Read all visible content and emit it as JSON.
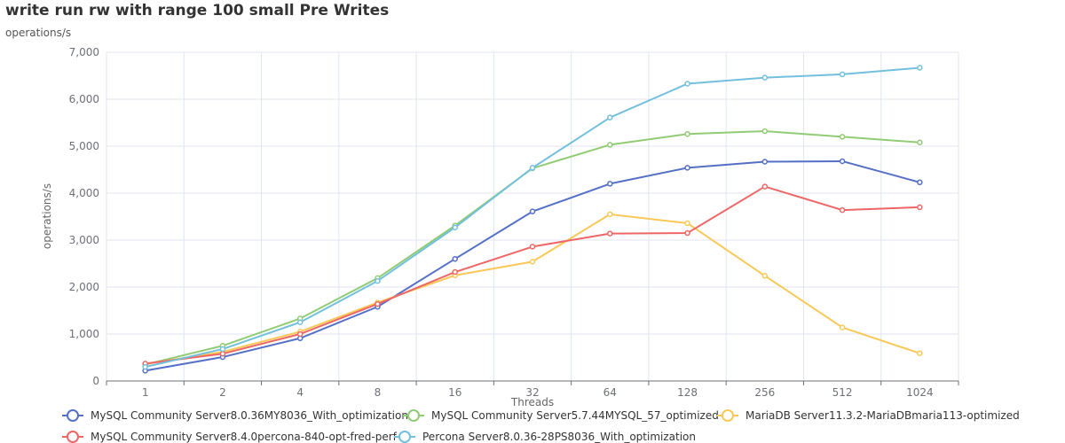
{
  "chart_data": {
    "type": "line",
    "title": "write run rw with range 100 small Pre Writes",
    "subtitle": "operations/s",
    "xlabel": "Threads",
    "ylabel": "operations/s",
    "categories": [
      "1",
      "2",
      "4",
      "8",
      "16",
      "32",
      "64",
      "128",
      "256",
      "512",
      "1024"
    ],
    "ylim": [
      0,
      7000
    ],
    "yticks": [
      "0",
      "1,000",
      "2,000",
      "3,000",
      "4,000",
      "5,000",
      "6,000",
      "7,000"
    ],
    "grid": true,
    "legend_position": "bottom",
    "series": [
      {
        "name": "MySQL Community Server8.0.36MY8036_With_optimization",
        "color": "#5470c6",
        "values": [
          220,
          510,
          910,
          1580,
          2600,
          3610,
          4200,
          4540,
          4670,
          4680,
          4230
        ]
      },
      {
        "name": "MySQL Community Server5.7.44MYSQL_57_optimized",
        "color": "#91cc75",
        "values": [
          350,
          750,
          1330,
          2190,
          3310,
          4530,
          5030,
          5260,
          5320,
          5200,
          5080
        ]
      },
      {
        "name": "MariaDB Server11.3.2-MariaDBmaria113-optimized",
        "color": "#fac858",
        "values": [
          360,
          620,
          1050,
          1670,
          2250,
          2540,
          3550,
          3360,
          2240,
          1140,
          590
        ]
      },
      {
        "name": "MySQL Community Server8.4.0percona-840-opt-fred-perf",
        "color": "#ee6666",
        "values": [
          370,
          580,
          1000,
          1640,
          2320,
          2860,
          3140,
          3150,
          4140,
          3640,
          3700
        ]
      },
      {
        "name": "Percona Server8.0.36-28PS8036_With_optimization",
        "color": "#73c0de",
        "values": [
          300,
          680,
          1250,
          2130,
          3270,
          4540,
          5610,
          6330,
          6460,
          6530,
          6670
        ]
      }
    ]
  }
}
